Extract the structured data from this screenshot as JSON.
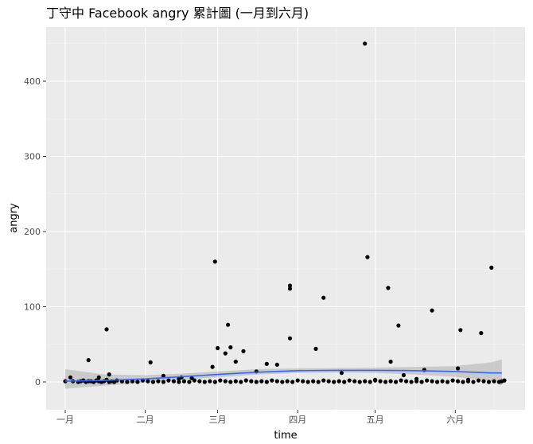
{
  "chart_data": {
    "type": "scatter",
    "title": "丁守中 Facebook angry 累計圖 (一月到六月)",
    "xlabel": "time",
    "ylabel": "angry",
    "x_ticks": [
      "一月",
      "二月",
      "三月",
      "四月",
      "五月",
      "六月"
    ],
    "y_ticks": [
      0,
      100,
      200,
      300,
      400
    ],
    "xlim": [
      0,
      172
    ],
    "ylim": [
      -35,
      470
    ],
    "grid": true,
    "smooth": {
      "method": "loess",
      "x": [
        0,
        15,
        31,
        45,
        59,
        75,
        90,
        105,
        120,
        135,
        150,
        165,
        169
      ],
      "y": [
        1,
        2,
        4,
        7,
        10,
        13,
        15,
        15.5,
        15.5,
        15,
        14,
        12,
        12
      ],
      "band_lower": [
        -9,
        -5,
        -1,
        3,
        6,
        10,
        12,
        12.5,
        12,
        10,
        7,
        1,
        -5
      ],
      "band_upper": [
        17,
        10,
        9,
        11,
        14,
        17,
        18,
        18.5,
        19,
        20,
        21,
        26,
        30
      ]
    },
    "points": {
      "x": [
        0,
        2,
        3,
        5,
        6,
        7,
        8,
        9,
        10,
        11,
        12,
        13,
        14,
        15,
        16,
        17,
        18,
        19,
        20,
        22,
        24,
        26,
        28,
        30,
        32,
        34,
        36,
        38,
        40,
        42,
        44,
        46,
        48,
        50,
        52,
        54,
        56,
        58,
        60,
        62,
        64,
        66,
        68,
        70,
        72,
        74,
        76,
        78,
        80,
        82,
        84,
        86,
        88,
        90,
        92,
        94,
        96,
        98,
        100,
        102,
        104,
        106,
        108,
        110,
        112,
        114,
        116,
        118,
        120,
        122,
        124,
        126,
        128,
        130,
        132,
        134,
        136,
        138,
        140,
        142,
        144,
        146,
        148,
        150,
        152,
        154,
        156,
        158,
        160,
        162,
        164,
        166,
        168,
        169,
        9,
        13,
        17,
        16,
        33,
        38,
        45,
        49,
        59,
        57,
        58,
        63,
        64,
        66,
        74,
        78,
        82,
        87,
        87,
        87,
        97,
        100,
        107,
        116,
        117,
        125,
        126,
        129,
        139,
        152,
        153,
        165,
        142,
        170,
        44,
        69,
        62,
        120,
        131,
        136,
        156,
        161
      ],
      "y": [
        1,
        6,
        1,
        0,
        1,
        2,
        0,
        1,
        1,
        0,
        2,
        1,
        0,
        1,
        3,
        0,
        1,
        0,
        2,
        1,
        0,
        1,
        0,
        2,
        1,
        0,
        1,
        0,
        2,
        1,
        0,
        1,
        0,
        2,
        1,
        0,
        1,
        0,
        2,
        1,
        0,
        1,
        0,
        2,
        1,
        0,
        1,
        0,
        2,
        1,
        0,
        1,
        0,
        2,
        1,
        0,
        1,
        0,
        2,
        1,
        0,
        1,
        0,
        2,
        1,
        0,
        1,
        0,
        2,
        1,
        0,
        1,
        0,
        2,
        1,
        0,
        1,
        0,
        2,
        1,
        0,
        1,
        0,
        2,
        1,
        0,
        1,
        0,
        2,
        1,
        0,
        1,
        0,
        1,
        29,
        6,
        10,
        70,
        26,
        8,
        6,
        5,
        45,
        20,
        160,
        76,
        46,
        27,
        14,
        24,
        23,
        124,
        58,
        128,
        44,
        112,
        12,
        450,
        166,
        125,
        27,
        75,
        16,
        18,
        69,
        152,
        95,
        2,
        4,
        41,
        38,
        3,
        9,
        4,
        3,
        65
      ]
    }
  }
}
